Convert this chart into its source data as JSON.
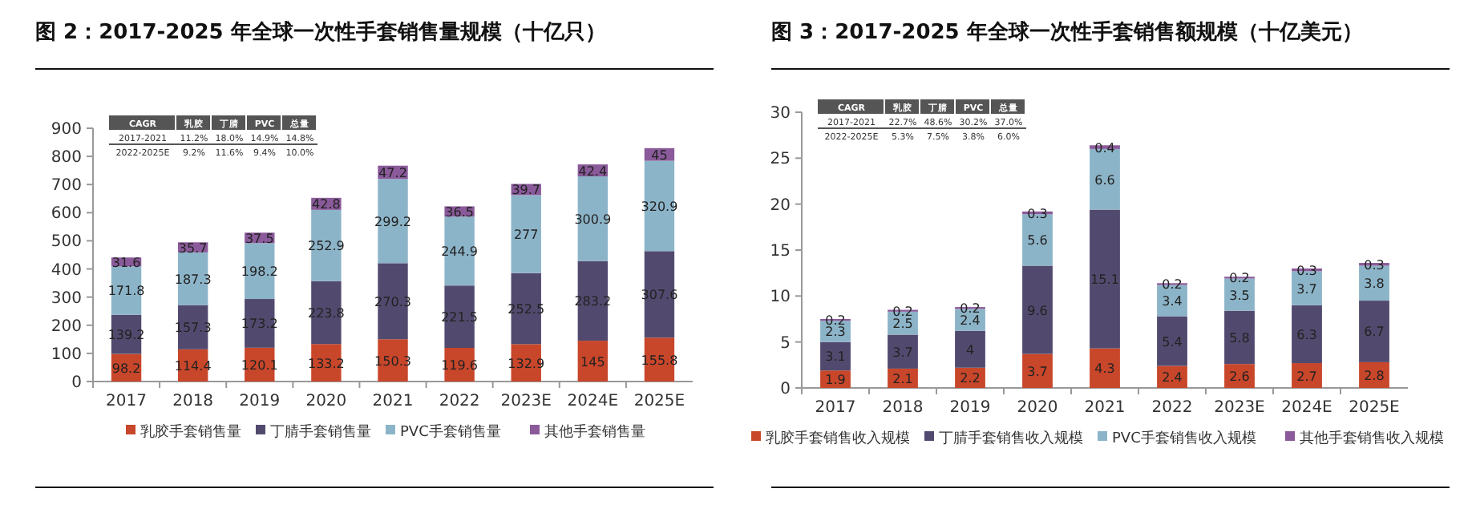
{
  "chart_data": [
    {
      "type": "bar",
      "stacked": true,
      "title": "图 2：2017-2025 年全球一次性手套销售量规模（十亿只）",
      "categories": [
        "2017",
        "2018",
        "2019",
        "2020",
        "2021",
        "2022",
        "2023E",
        "2024E",
        "2025E"
      ],
      "series": [
        {
          "name": "乳胶手套销售量",
          "color": "#c8462a",
          "values": [
            98.2,
            114.4,
            120.1,
            133.2,
            150.3,
            119.6,
            132.9,
            145,
            155.8
          ]
        },
        {
          "name": "丁腈手套销售量",
          "color": "#524a6e",
          "values": [
            139.2,
            157.3,
            173.2,
            223.8,
            270.3,
            221.5,
            252.5,
            283.2,
            307.6
          ]
        },
        {
          "name": "PVC手套销售量",
          "color": "#8cb4c8",
          "values": [
            171.8,
            187.3,
            198.2,
            252.9,
            299.2,
            244.9,
            277,
            300.9,
            320.9
          ]
        },
        {
          "name": "其他手套销售量",
          "color": "#8a5a9a",
          "values": [
            31.6,
            35.7,
            37.5,
            42.8,
            47.2,
            36.5,
            39.7,
            42.4,
            45
          ]
        }
      ],
      "ylim": [
        0,
        900
      ],
      "yticks": [
        0,
        100,
        200,
        300,
        400,
        500,
        600,
        700,
        800,
        900
      ],
      "data_labels": true,
      "legend": "bottom",
      "annotations": [
        "CAGR",
        "乳胶",
        "丁腈",
        "PVC",
        "总量",
        "2017-2021",
        "11.2%",
        "18.0%",
        "14.9%",
        "14.8%",
        "2022-2025E",
        "9.2%",
        "11.6%",
        "9.4%",
        "10.0%"
      ]
    },
    {
      "type": "bar",
      "stacked": true,
      "title": "图 3：2017-2025 年全球一次性手套销售额规模（十亿美元）",
      "categories": [
        "2017",
        "2018",
        "2019",
        "2020",
        "2021",
        "2022",
        "2023E",
        "2024E",
        "2025E"
      ],
      "series": [
        {
          "name": "乳胶手套销售收入规模",
          "color": "#c8462a",
          "values": [
            1.9,
            2.1,
            2.2,
            3.7,
            4.3,
            2.4,
            2.6,
            2.7,
            2.8
          ]
        },
        {
          "name": "丁腈手套销售收入规模",
          "color": "#524a6e",
          "values": [
            3.1,
            3.7,
            4,
            9.6,
            15.1,
            5.4,
            5.8,
            6.3,
            6.7
          ]
        },
        {
          "name": "PVC手套销售收入规模",
          "color": "#8cb4c8",
          "values": [
            2.3,
            2.5,
            2.4,
            5.6,
            6.6,
            3.4,
            3.5,
            3.7,
            3.8
          ]
        },
        {
          "name": "其他手套销售收入规模",
          "color": "#8a5a9a",
          "values": [
            0.2,
            0.2,
            0.2,
            0.3,
            0.4,
            0.2,
            0.2,
            0.3,
            0.3
          ]
        }
      ],
      "ylim": [
        0,
        30
      ],
      "yticks": [
        0,
        5,
        10,
        15,
        20,
        25,
        30
      ],
      "data_labels": true,
      "legend": "bottom",
      "annotations": [
        "CAGR",
        "乳胶",
        "丁腈",
        "PVC",
        "总量",
        "2017-2021",
        "22.7%",
        "48.6%",
        "30.2%",
        "37.0%",
        "2022-2025E",
        "5.3%",
        "7.5%",
        "3.8%",
        "6.0%"
      ]
    }
  ]
}
